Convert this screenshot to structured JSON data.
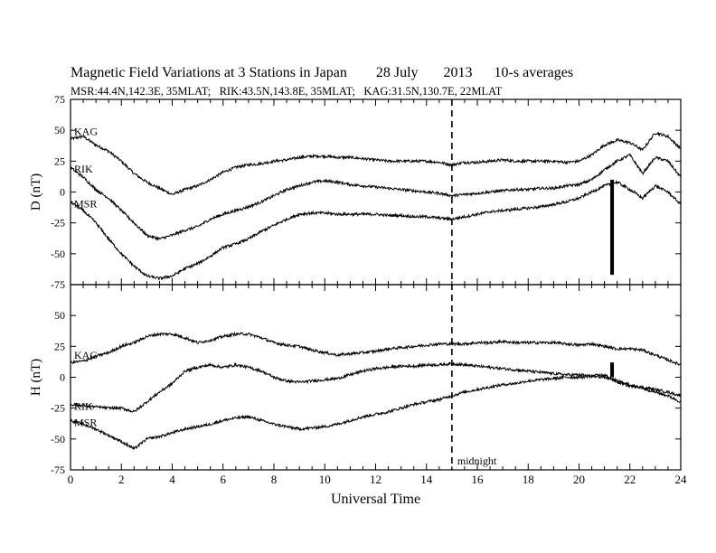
{
  "header": {
    "title": "Magnetic Field Variations at 3 Stations in Japan        28 July       2013      10-s averages",
    "subtitle": "MSR:44.4N,142.3E, 35MLAT;   RIK:43.5N,143.8E, 35MLAT;   KAG:31.5N,130.7E, 22MLAT"
  },
  "chart_data": [
    {
      "type": "line",
      "panel": "D",
      "ylabel": "D (nT)",
      "ylim": [
        -75,
        75
      ],
      "yticks": [
        -75,
        -50,
        -25,
        0,
        25,
        50,
        75
      ],
      "xlim": [
        0,
        24
      ],
      "series": [
        {
          "name": "KAG",
          "x": [
            0,
            0.5,
            1,
            1.5,
            2,
            2.5,
            3,
            3.5,
            4,
            4.5,
            5,
            5.5,
            6,
            6.5,
            7,
            7.5,
            8,
            8.5,
            9,
            9.5,
            10,
            10.5,
            11,
            11.5,
            12,
            12.5,
            13,
            13.5,
            14,
            14.5,
            15,
            15.5,
            16,
            16.5,
            17,
            17.5,
            18,
            18.5,
            19,
            19.5,
            20,
            20.5,
            21,
            21.5,
            22,
            22.5,
            23,
            23.5,
            24
          ],
          "y": [
            43,
            45,
            38,
            33,
            25,
            15,
            8,
            3,
            -2,
            2,
            5,
            10,
            16,
            20,
            22,
            23,
            25,
            26,
            28,
            29,
            29,
            28,
            28,
            27,
            26,
            25,
            25,
            25,
            25,
            24,
            22,
            24,
            24,
            25,
            26,
            25,
            25,
            25,
            25,
            24,
            25,
            30,
            38,
            42,
            40,
            34,
            48,
            45,
            35
          ]
        },
        {
          "name": "RIK",
          "x": [
            0,
            0.5,
            1,
            1.5,
            2,
            2.5,
            3,
            3.5,
            4,
            4.5,
            5,
            5.5,
            6,
            6.5,
            7,
            7.5,
            8,
            8.5,
            9,
            9.5,
            10,
            10.5,
            11,
            11.5,
            12,
            12.5,
            13,
            13.5,
            14,
            14.5,
            15,
            15.5,
            16,
            16.5,
            17,
            17.5,
            18,
            18.5,
            19,
            19.5,
            20,
            20.5,
            21,
            21.5,
            22,
            22.5,
            23,
            23.5,
            24
          ],
          "y": [
            20,
            12,
            2,
            -5,
            -15,
            -25,
            -35,
            -38,
            -35,
            -31,
            -28,
            -22,
            -18,
            -15,
            -12,
            -8,
            -3,
            2,
            5,
            8,
            9,
            8,
            6,
            5,
            4,
            3,
            2,
            1,
            0,
            -1,
            -3,
            -2,
            -1,
            0,
            1,
            2,
            2,
            3,
            3,
            5,
            6,
            10,
            18,
            25,
            30,
            15,
            28,
            25,
            12
          ]
        },
        {
          "name": "MSR",
          "x": [
            0,
            0.5,
            1,
            1.5,
            2,
            2.5,
            3,
            3.5,
            4,
            4.5,
            5,
            5.5,
            6,
            6.5,
            7,
            7.5,
            8,
            8.5,
            9,
            9.5,
            10,
            10.5,
            11,
            11.5,
            12,
            12.5,
            13,
            13.5,
            14,
            14.5,
            15,
            15.5,
            16,
            16.5,
            17,
            17.5,
            18,
            18.5,
            19,
            19.5,
            20,
            20.5,
            21,
            21.5,
            22,
            22.5,
            23,
            23.5,
            24
          ],
          "y": [
            -8,
            -15,
            -25,
            -38,
            -50,
            -60,
            -68,
            -70,
            -68,
            -62,
            -58,
            -52,
            -45,
            -42,
            -38,
            -32,
            -27,
            -22,
            -18,
            -17,
            -17,
            -18,
            -18,
            -18,
            -18,
            -19,
            -19,
            -20,
            -20,
            -21,
            -22,
            -20,
            -18,
            -16,
            -15,
            -14,
            -13,
            -12,
            -10,
            -8,
            -5,
            0,
            5,
            8,
            2,
            -5,
            5,
            0,
            -10
          ]
        }
      ],
      "series_labels": [
        "KAG",
        "RIK",
        "MSR"
      ],
      "annotations": [
        {
          "type": "vertical_bar",
          "x": 21.3,
          "y_from": -67,
          "y_to": 10
        }
      ]
    },
    {
      "type": "line",
      "panel": "H",
      "ylabel": "H (nT)",
      "ylim": [
        -75,
        75
      ],
      "yticks": [
        -75,
        -50,
        -25,
        0,
        25,
        50
      ],
      "xlim": [
        0,
        24
      ],
      "xticks": [
        0,
        2,
        4,
        6,
        8,
        10,
        12,
        14,
        16,
        18,
        20,
        22,
        24
      ],
      "xlabel": "Universal Time",
      "series": [
        {
          "name": "KAG",
          "x": [
            0,
            0.5,
            1,
            1.5,
            2,
            2.5,
            3,
            3.5,
            4,
            4.5,
            5,
            5.5,
            6,
            6.5,
            7,
            7.5,
            8,
            8.5,
            9,
            9.5,
            10,
            10.5,
            11,
            11.5,
            12,
            12.5,
            13,
            13.5,
            14,
            14.5,
            15,
            15.5,
            16,
            16.5,
            17,
            17.5,
            18,
            18.5,
            19,
            19.5,
            20,
            20.5,
            21,
            21.5,
            22,
            22.5,
            23,
            23.5,
            24
          ],
          "y": [
            12,
            13,
            17,
            20,
            25,
            28,
            33,
            35,
            35,
            32,
            28,
            30,
            33,
            35,
            35,
            32,
            28,
            26,
            25,
            22,
            20,
            18,
            19,
            20,
            21,
            23,
            24,
            25,
            26,
            27,
            27,
            27,
            28,
            28,
            29,
            28,
            28,
            28,
            28,
            27,
            26,
            27,
            25,
            23,
            23,
            22,
            18,
            14,
            10
          ]
        },
        {
          "name": "RIK",
          "x": [
            0,
            0.5,
            1,
            1.5,
            2,
            2.5,
            3,
            3.5,
            4,
            4.5,
            5,
            5.5,
            6,
            6.5,
            7,
            7.5,
            8,
            8.5,
            9,
            9.5,
            10,
            10.5,
            11,
            11.5,
            12,
            12.5,
            13,
            13.5,
            14,
            14.5,
            15,
            15.5,
            16,
            16.5,
            17,
            17.5,
            18,
            18.5,
            19,
            19.5,
            20,
            20.5,
            21,
            21.5,
            22,
            22.5,
            23,
            23.5,
            24
          ],
          "y": [
            -22,
            -23,
            -24,
            -25,
            -25,
            -28,
            -20,
            -12,
            -5,
            5,
            8,
            10,
            8,
            10,
            8,
            5,
            0,
            -3,
            -4,
            -3,
            -2,
            -1,
            2,
            5,
            7,
            8,
            9,
            9,
            10,
            10,
            11,
            10,
            9,
            8,
            7,
            6,
            5,
            4,
            3,
            2,
            2,
            1,
            2,
            -4,
            -7,
            -8,
            -10,
            -12,
            -15
          ]
        },
        {
          "name": "MSR",
          "x": [
            0,
            0.5,
            1,
            1.5,
            2,
            2.5,
            3,
            3.5,
            4,
            4.5,
            5,
            5.5,
            6,
            6.5,
            7,
            7.5,
            8,
            8.5,
            9,
            9.5,
            10,
            10.5,
            11,
            11.5,
            12,
            12.5,
            13,
            13.5,
            14,
            14.5,
            15,
            15.5,
            16,
            16.5,
            17,
            17.5,
            18,
            18.5,
            19,
            19.5,
            20,
            20.5,
            21,
            21.5,
            22,
            22.5,
            23,
            23.5,
            24
          ],
          "y": [
            -35,
            -38,
            -42,
            -47,
            -52,
            -58,
            -50,
            -48,
            -45,
            -42,
            -40,
            -38,
            -35,
            -33,
            -32,
            -35,
            -38,
            -40,
            -42,
            -41,
            -40,
            -38,
            -35,
            -32,
            -30,
            -28,
            -25,
            -22,
            -20,
            -18,
            -15,
            -12,
            -10,
            -8,
            -6,
            -5,
            -3,
            -2,
            -1,
            0,
            0,
            1,
            0,
            -3,
            -6,
            -9,
            -12,
            -15,
            -20
          ]
        }
      ],
      "series_labels": [
        "KAG",
        "RIK",
        "MSR"
      ],
      "annotations": [
        {
          "type": "vertical_bar",
          "x": 21.3,
          "y_from": 0,
          "y_to": 12
        }
      ]
    }
  ],
  "marker": {
    "x": 15,
    "label": "midnight"
  }
}
